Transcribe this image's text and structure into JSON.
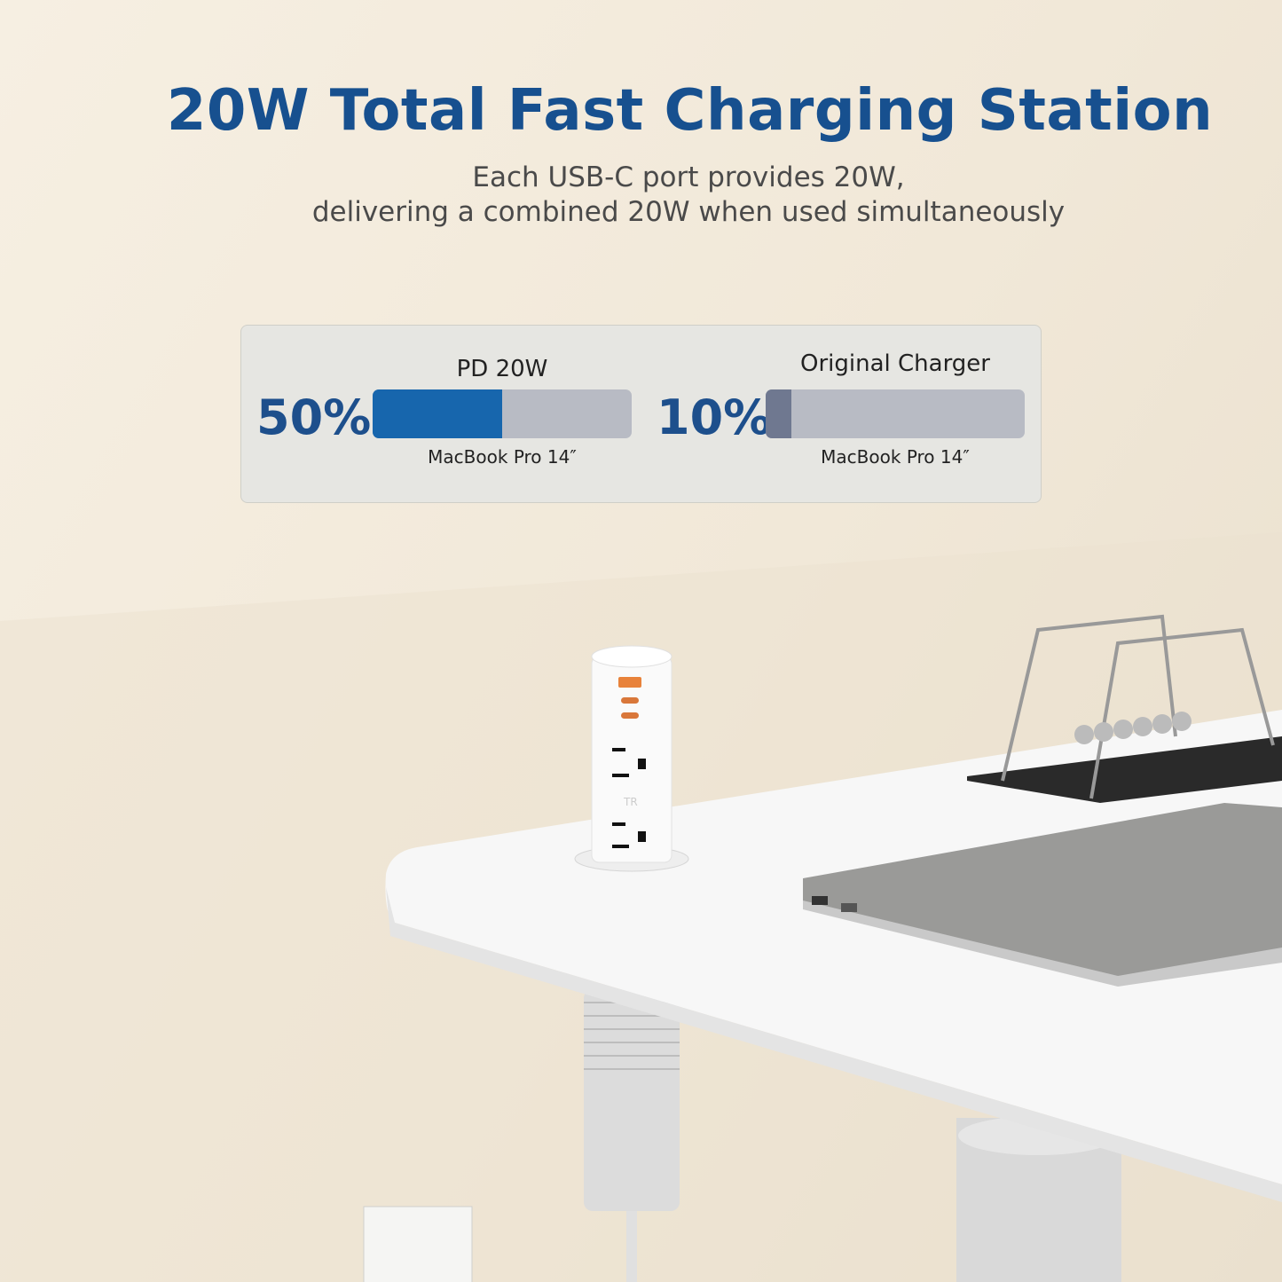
{
  "headline": "20W Total Fast Charging Station",
  "subtitle_line1": "Each USB-C port provides 20W,",
  "subtitle_line2": "delivering a combined 20W when used simultaneously",
  "comparison": [
    {
      "label": "PD 20W",
      "percent_text": "50%",
      "value": 50,
      "device": "MacBook Pro 14″",
      "color": "#1766ad"
    },
    {
      "label": "Original Charger",
      "percent_text": "10%",
      "value": 10,
      "device": "MacBook Pro 14″",
      "color": "#6f7890"
    }
  ],
  "product": {
    "brand_mark": "TR",
    "port_color": "#e8823a"
  },
  "colors": {
    "headline": "#17508f",
    "background": "#f4ecdf",
    "bar_track": "#b8bbc4"
  }
}
